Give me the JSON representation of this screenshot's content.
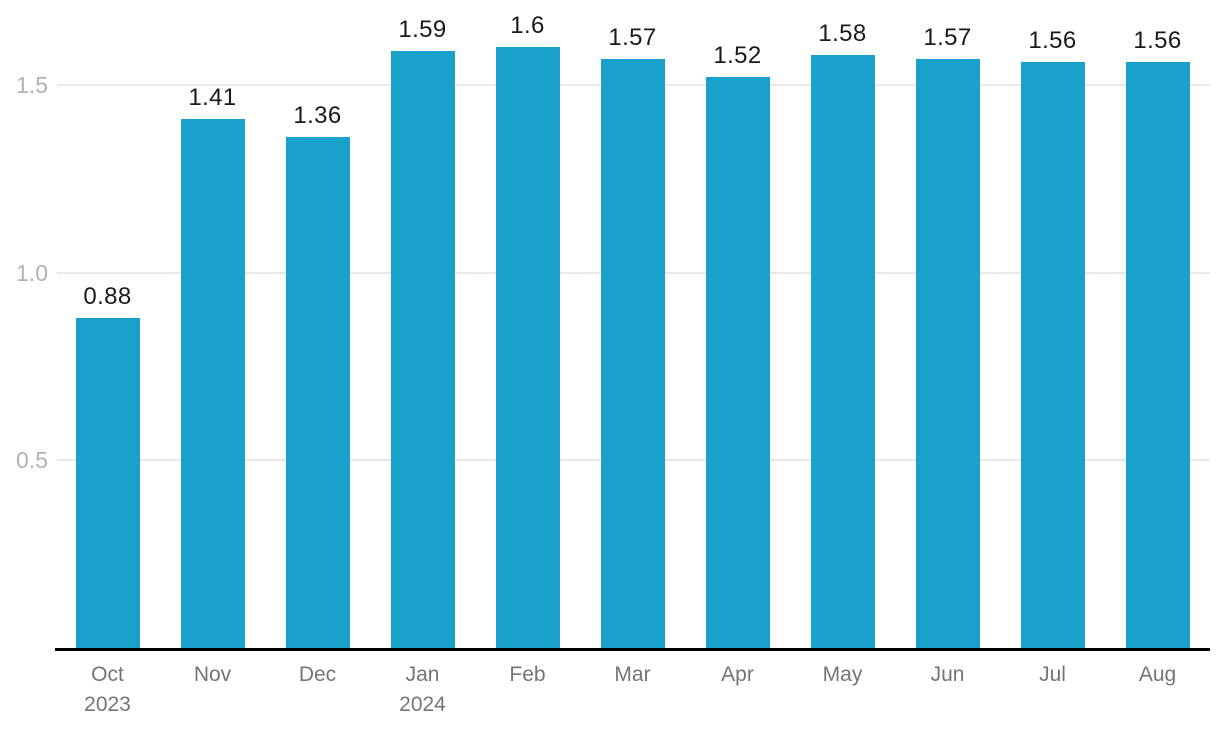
{
  "chart_data": {
    "type": "bar",
    "title": "",
    "xlabel": "",
    "ylabel": "",
    "categories": [
      "Oct",
      "Nov",
      "Dec",
      "Jan",
      "Feb",
      "Mar",
      "Apr",
      "May",
      "Jun",
      "Jul",
      "Aug"
    ],
    "category_sublabels": [
      "2023",
      "",
      "",
      "2024",
      "",
      "",
      "",
      "",
      "",
      "",
      ""
    ],
    "values": [
      0.88,
      1.41,
      1.36,
      1.59,
      1.6,
      1.57,
      1.52,
      1.58,
      1.57,
      1.56,
      1.56
    ],
    "value_labels": [
      "0.88",
      "1.41",
      "1.36",
      "1.59",
      "1.6",
      "1.57",
      "1.52",
      "1.58",
      "1.57",
      "1.56",
      "1.56"
    ],
    "y_ticks": [
      {
        "value": 0.5,
        "label": "0.5"
      },
      {
        "value": 1.0,
        "label": "1.0"
      },
      {
        "value": 1.5,
        "label": "1.5"
      }
    ],
    "ylim": [
      0,
      1.726
    ],
    "grid": "horizontal",
    "legend": "none",
    "colors": {
      "bar": "#19a0cb",
      "gridline": "#e8e8e8",
      "axis_line": "#000000",
      "value_label": "#1a1a1a",
      "x_tick_label": "#757575",
      "y_tick_label": "#b2b2b2",
      "background": "#ffffff"
    }
  }
}
